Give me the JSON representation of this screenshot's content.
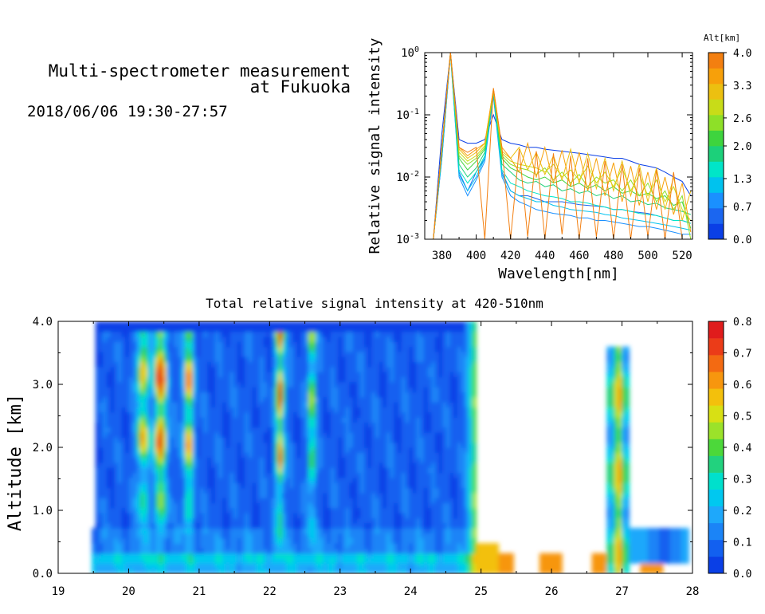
{
  "header": {
    "title_line1": "Multi-spectrometer measurement",
    "title_line2": "at Fukuoka",
    "datetime": "2018/06/06 19:30-27:57"
  },
  "chart_data": [
    {
      "id": "spectra",
      "type": "line",
      "title": "",
      "xlabel": "Wavelength[nm]",
      "ylabel": "Relative signal intensity",
      "xlim": [
        370,
        526
      ],
      "ylim_log10": [
        -3,
        0
      ],
      "yscale": "log",
      "x_ticks": [
        380,
        400,
        420,
        440,
        460,
        480,
        500,
        520
      ],
      "y_ticks": [
        {
          "base": "10",
          "exp": "0",
          "value": 1
        },
        {
          "base": "10",
          "exp": "-1",
          "value": 0.1
        },
        {
          "base": "10",
          "exp": "-2",
          "value": 0.01
        },
        {
          "base": "10",
          "exp": "-3",
          "value": 0.001
        }
      ],
      "x": [
        375,
        380,
        385,
        390,
        395,
        400,
        405,
        410,
        415,
        420,
        425,
        430,
        435,
        440,
        445,
        450,
        455,
        460,
        465,
        470,
        475,
        480,
        485,
        490,
        495,
        500,
        505,
        510,
        515,
        520,
        525
      ],
      "series": [
        {
          "alt_km": 0.0,
          "color": "#0a3fe6",
          "values": [
            0.001,
            0.05,
            1.0,
            0.04,
            0.035,
            0.035,
            0.04,
            0.1,
            0.04,
            0.035,
            0.033,
            0.03,
            0.03,
            0.028,
            0.027,
            0.026,
            0.025,
            0.024,
            0.023,
            0.022,
            0.021,
            0.02,
            0.02,
            0.018,
            0.016,
            0.015,
            0.014,
            0.012,
            0.01,
            0.0085,
            0.005
          ]
        },
        {
          "alt_km": 0.3,
          "color": "#1b66f0",
          "values": [
            0.001,
            0.02,
            1.0,
            0.012,
            0.006,
            0.012,
            0.02,
            0.2,
            0.012,
            0.006,
            0.005,
            0.005,
            0.0045,
            0.004,
            0.004,
            0.004,
            0.0038,
            0.0036,
            0.0035,
            0.0034,
            0.0033,
            0.003,
            0.003,
            0.0028,
            0.0027,
            0.0026,
            0.0024,
            0.0022,
            0.002,
            0.002,
            0.0018
          ]
        },
        {
          "alt_km": 0.7,
          "color": "#1a90ff",
          "values": [
            0.001,
            0.02,
            0.95,
            0.01,
            0.005,
            0.009,
            0.018,
            0.2,
            0.01,
            0.005,
            0.004,
            0.0035,
            0.003,
            0.0028,
            0.0026,
            0.0025,
            0.0024,
            0.0022,
            0.0022,
            0.002,
            0.002,
            0.0019,
            0.0018,
            0.0017,
            0.0016,
            0.0016,
            0.0015,
            0.0014,
            0.0013,
            0.0012,
            0.0012
          ]
        },
        {
          "alt_km": 1.0,
          "color": "#00c2ee",
          "values": [
            0.001,
            0.022,
            0.95,
            0.011,
            0.006,
            0.01,
            0.02,
            0.22,
            0.011,
            0.006,
            0.005,
            0.0045,
            0.004,
            0.004,
            0.0035,
            0.0033,
            0.003,
            0.0029,
            0.0028,
            0.0027,
            0.0025,
            0.0024,
            0.0022,
            0.0021,
            0.002,
            0.0019,
            0.0018,
            0.0017,
            0.0016,
            0.0015,
            0.0014
          ]
        },
        {
          "alt_km": 1.3,
          "color": "#00e5c8",
          "values": [
            0.001,
            0.025,
            1.0,
            0.013,
            0.008,
            0.012,
            0.022,
            0.23,
            0.013,
            0.008,
            0.007,
            0.006,
            0.0055,
            0.005,
            0.0048,
            0.0045,
            0.004,
            0.004,
            0.0038,
            0.0035,
            0.0033,
            0.003,
            0.003,
            0.0028,
            0.0026,
            0.0025,
            0.0024,
            0.0022,
            0.002,
            0.002,
            0.0018
          ]
        },
        {
          "alt_km": 1.7,
          "color": "#1cd07a",
          "values": [
            0.001,
            0.025,
            1.0,
            0.016,
            0.01,
            0.014,
            0.025,
            0.24,
            0.016,
            0.012,
            0.009,
            0.008,
            0.0085,
            0.007,
            0.0075,
            0.006,
            0.0065,
            0.0055,
            0.006,
            0.005,
            0.0055,
            0.0045,
            0.005,
            0.004,
            0.0042,
            0.0036,
            0.0038,
            0.0032,
            0.003,
            0.0028,
            0.0025
          ]
        },
        {
          "alt_km": 2.0,
          "color": "#3ed43e",
          "values": [
            0.001,
            0.028,
            1.0,
            0.02,
            0.013,
            0.018,
            0.028,
            0.24,
            0.02,
            0.014,
            0.012,
            0.01,
            0.009,
            0.01,
            0.008,
            0.009,
            0.007,
            0.008,
            0.0065,
            0.0075,
            0.006,
            0.007,
            0.0055,
            0.006,
            0.005,
            0.0055,
            0.0045,
            0.005,
            0.0035,
            0.004,
            0.0015
          ]
        },
        {
          "alt_km": 2.3,
          "color": "#8ee028",
          "values": [
            0.001,
            0.03,
            1.0,
            0.022,
            0.016,
            0.02,
            0.03,
            0.25,
            0.022,
            0.016,
            0.014,
            0.013,
            0.011,
            0.014,
            0.009,
            0.012,
            0.008,
            0.011,
            0.007,
            0.01,
            0.008,
            0.009,
            0.006,
            0.009,
            0.005,
            0.008,
            0.004,
            0.006,
            0.003,
            0.005,
            0.001
          ]
        },
        {
          "alt_km": 2.6,
          "color": "#c8dc18",
          "values": [
            0.001,
            0.03,
            1.0,
            0.025,
            0.018,
            0.022,
            0.032,
            0.25,
            0.024,
            0.018,
            0.016,
            0.015,
            0.014,
            0.012,
            0.016,
            0.01,
            0.013,
            0.009,
            0.015,
            0.008,
            0.012,
            0.007,
            0.014,
            0.006,
            0.011,
            0.005,
            0.009,
            0.004,
            0.007,
            0.003,
            0.002
          ]
        },
        {
          "alt_km": 3.0,
          "color": "#ecc010",
          "values": [
            0.001,
            0.03,
            1.0,
            0.028,
            0.02,
            0.025,
            0.035,
            0.26,
            0.026,
            0.02,
            0.03,
            0.013,
            0.025,
            0.011,
            0.022,
            0.009,
            0.028,
            0.008,
            0.024,
            0.0065,
            0.02,
            0.006,
            0.018,
            0.005,
            0.016,
            0.004,
            0.014,
            0.003,
            0.01,
            0.002,
            0.006
          ]
        },
        {
          "alt_km": 3.3,
          "color": "#f7a00a",
          "values": [
            0.001,
            0.03,
            1.0,
            0.03,
            0.022,
            0.028,
            0.035,
            0.26,
            0.03,
            0.02,
            0.012,
            0.035,
            0.01,
            0.03,
            0.008,
            0.027,
            0.007,
            0.025,
            0.006,
            0.02,
            0.005,
            0.017,
            0.004,
            0.015,
            0.0035,
            0.012,
            0.003,
            0.01,
            0.0025,
            0.008,
            0.0013
          ]
        },
        {
          "alt_km": 3.7,
          "color": "#f37f10",
          "values": [
            0.001,
            0.03,
            1.0,
            0.03,
            0.025,
            0.03,
            0.001,
            0.27,
            0.03,
            0.001,
            0.028,
            0.0011,
            0.026,
            0.001,
            0.024,
            0.0012,
            0.022,
            0.001,
            0.02,
            0.0011,
            0.018,
            0.001,
            0.016,
            0.001,
            0.014,
            0.0011,
            0.013,
            0.001,
            0.012,
            0.001,
            0.001
          ]
        }
      ],
      "colorbar": {
        "title": "Alt[km]",
        "tick_labels": [
          "4.0",
          "3.3",
          "2.6",
          "2.0",
          "1.3",
          "0.7",
          "0.0"
        ],
        "tick_values": [
          4.0,
          3.3,
          2.6,
          2.0,
          1.3,
          0.7,
          0.0
        ],
        "range": [
          0,
          4
        ],
        "colors_bottom_to_top": [
          "#0a3fe6",
          "#1b66f0",
          "#1a90ff",
          "#00c2ee",
          "#00e5c8",
          "#1cd07a",
          "#3ed43e",
          "#8ee028",
          "#c8dc18",
          "#ecc010",
          "#f7a00a",
          "#f37f10"
        ]
      }
    },
    {
      "id": "time-height",
      "type": "heatmap",
      "title": "Total relative signal intensity at 420-510nm",
      "xlabel": "",
      "ylabel": "Altitude [km]",
      "xlim": [
        19,
        28
      ],
      "ylim": [
        0,
        4
      ],
      "x_ticks": [
        "19",
        "20",
        "21",
        "22",
        "23",
        "24",
        "25",
        "26",
        "27",
        "28"
      ],
      "x_tick_values": [
        19,
        20,
        21,
        22,
        23,
        24,
        25,
        26,
        27,
        28
      ],
      "y_ticks": [
        "0.0",
        "1.0",
        "2.0",
        "3.0",
        "4.0"
      ],
      "y_tick_values": [
        0,
        1,
        2,
        3,
        4
      ],
      "data_window": {
        "start": 19.5,
        "end": 27.95
      },
      "background_level": 0.08,
      "cloud_columns": [
        {
          "center": 20.2,
          "width": 0.08,
          "level": 0.55
        },
        {
          "center": 20.45,
          "width": 0.09,
          "level": 0.75
        },
        {
          "center": 20.85,
          "width": 0.07,
          "level": 0.6
        },
        {
          "center": 22.15,
          "width": 0.06,
          "level": 0.7
        },
        {
          "center": 22.6,
          "width": 0.05,
          "level": 0.5
        }
      ],
      "aerosol_layer": {
        "bottom_km": 0.15,
        "top_km": 0.7,
        "level": 0.15
      },
      "colorbar": {
        "tick_labels": [
          "0.8",
          "0.7",
          "0.6",
          "0.5",
          "0.4",
          "0.3",
          "0.2",
          "0.1",
          "0.0"
        ],
        "tick_values": [
          0.8,
          0.7,
          0.6,
          0.5,
          0.4,
          0.3,
          0.2,
          0.1,
          0.0
        ],
        "range": [
          0,
          0.8
        ],
        "colors_bottom_to_top": [
          "#0a3fe6",
          "#1260f0",
          "#1b84f7",
          "#1ea8fb",
          "#00c8f0",
          "#00e0cc",
          "#22d27e",
          "#4cd83a",
          "#9be22a",
          "#d8e014",
          "#f3c00c",
          "#f7960e",
          "#f36a12",
          "#eb3c18",
          "#e01c1c"
        ]
      }
    }
  ]
}
